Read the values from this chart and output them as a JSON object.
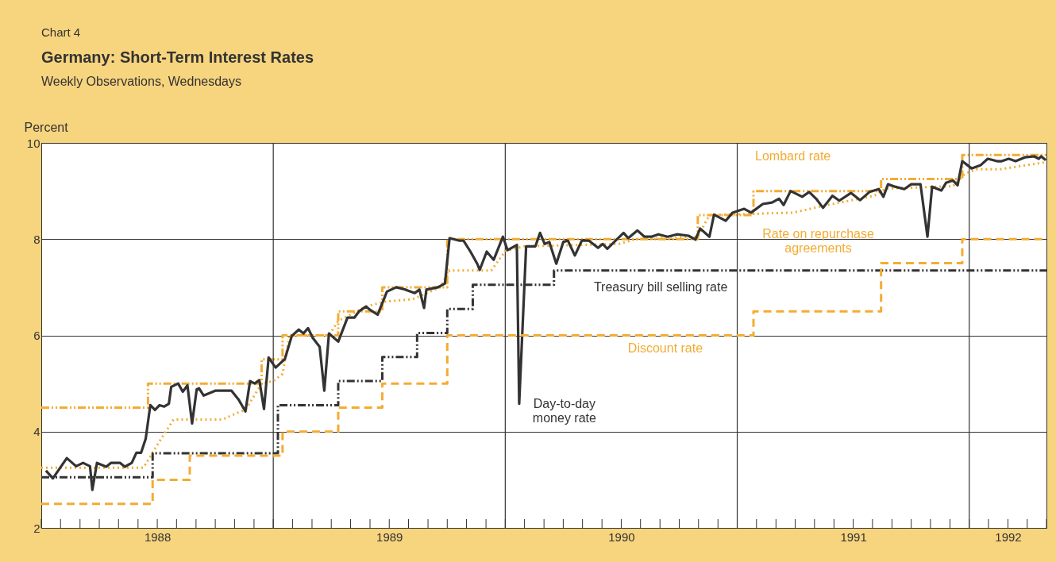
{
  "chart_data": {
    "type": "line",
    "title": "Germany:  Short-Term Interest Rates",
    "subtitle": "Weekly Observations, Wednesdays",
    "ylabel": "Percent",
    "xlim": [
      1988,
      1992.333
    ],
    "ylim": [
      2,
      10
    ],
    "yticks": [
      2,
      4,
      6,
      8,
      10
    ],
    "xticks": [
      {
        "value": 1988,
        "label": null
      },
      {
        "value": 1988.083,
        "label": null
      },
      {
        "value": 1988.167,
        "label": null
      },
      {
        "value": 1988.25,
        "label": null
      },
      {
        "value": 1988.333,
        "label": null
      },
      {
        "value": 1988.417,
        "label": null
      },
      {
        "value": 1988.5,
        "label": "1988"
      },
      {
        "value": 1988.583,
        "label": null
      },
      {
        "value": 1988.667,
        "label": null
      },
      {
        "value": 1988.75,
        "label": null
      },
      {
        "value": 1988.833,
        "label": null
      },
      {
        "value": 1988.917,
        "label": null
      },
      {
        "value": 1989,
        "label": null
      },
      {
        "value": 1989.083,
        "label": null
      },
      {
        "value": 1989.167,
        "label": null
      },
      {
        "value": 1989.25,
        "label": null
      },
      {
        "value": 1989.333,
        "label": null
      },
      {
        "value": 1989.417,
        "label": null
      },
      {
        "value": 1989.5,
        "label": "1989"
      },
      {
        "value": 1989.583,
        "label": null
      },
      {
        "value": 1989.667,
        "label": null
      },
      {
        "value": 1989.75,
        "label": null
      },
      {
        "value": 1989.833,
        "label": null
      },
      {
        "value": 1989.917,
        "label": null
      },
      {
        "value": 1990,
        "label": null
      },
      {
        "value": 1990.083,
        "label": null
      },
      {
        "value": 1990.167,
        "label": null
      },
      {
        "value": 1990.25,
        "label": null
      },
      {
        "value": 1990.333,
        "label": null
      },
      {
        "value": 1990.417,
        "label": null
      },
      {
        "value": 1990.5,
        "label": "1990"
      },
      {
        "value": 1990.583,
        "label": null
      },
      {
        "value": 1990.667,
        "label": null
      },
      {
        "value": 1990.75,
        "label": null
      },
      {
        "value": 1990.833,
        "label": null
      },
      {
        "value": 1990.917,
        "label": null
      },
      {
        "value": 1991,
        "label": null
      },
      {
        "value": 1991.083,
        "label": null
      },
      {
        "value": 1991.167,
        "label": null
      },
      {
        "value": 1991.25,
        "label": null
      },
      {
        "value": 1991.333,
        "label": null
      },
      {
        "value": 1991.417,
        "label": null
      },
      {
        "value": 1991.5,
        "label": "1991"
      },
      {
        "value": 1991.583,
        "label": null
      },
      {
        "value": 1991.667,
        "label": null
      },
      {
        "value": 1991.75,
        "label": null
      },
      {
        "value": 1991.833,
        "label": null
      },
      {
        "value": 1991.917,
        "label": null
      },
      {
        "value": 1992,
        "label": null
      },
      {
        "value": 1992.083,
        "label": null
      },
      {
        "value": 1992.167,
        "label": "1992"
      },
      {
        "value": 1992.25,
        "label": null
      },
      {
        "value": 1992.333,
        "label": null
      }
    ],
    "grid": "y",
    "ref_lines": [
      {
        "axis": "x",
        "value": 1989,
        "label": null,
        "color": "#333333"
      },
      {
        "axis": "x",
        "value": 1990,
        "label": null,
        "color": "#333333"
      },
      {
        "axis": "x",
        "value": 1991,
        "label": null,
        "color": "#333333"
      },
      {
        "axis": "x",
        "value": 1992,
        "label": null,
        "color": "#333333"
      }
    ],
    "series": [
      {
        "type": "step",
        "line_style": "dashdot",
        "color": "#f3ac32",
        "x": [
          1988,
          1988.46,
          1988.95,
          1989.04,
          1989.28,
          1989.47,
          1989.75,
          1990.83,
          1991.07,
          1991.62,
          1991.97,
          1992.333
        ],
        "values": [
          4.5,
          5.0,
          5.5,
          6.0,
          6.5,
          7.0,
          8.0,
          8.5,
          9.0,
          9.25,
          9.75,
          9.75
        ]
      },
      {
        "type": "line",
        "line_style": "dotted",
        "color": "#f3ac32",
        "x": [
          1988,
          1988.44,
          1988.51,
          1988.57,
          1988.78,
          1988.85,
          1988.88,
          1988.95,
          1989.0,
          1989.04,
          1989.07,
          1989.24,
          1989.28,
          1989.4,
          1989.48,
          1989.6,
          1989.72,
          1989.76,
          1989.94,
          1990.0,
          1990.08,
          1990.49,
          1990.56,
          1990.83,
          1990.88,
          1991.24,
          1991.38,
          1991.59,
          1991.64,
          1991.93,
          1991.98,
          1992.03,
          1992.13,
          1992.333
        ],
        "values": [
          3.25,
          3.25,
          3.8,
          4.25,
          4.25,
          4.4,
          4.45,
          5.0,
          5.05,
          5.2,
          6.0,
          6.0,
          6.3,
          6.6,
          6.7,
          6.75,
          7.0,
          7.35,
          7.35,
          7.75,
          7.85,
          7.9,
          8.0,
          8.05,
          8.5,
          8.55,
          8.7,
          8.9,
          9.05,
          9.1,
          9.35,
          9.45,
          9.45,
          9.6
        ]
      },
      {
        "type": "line",
        "line_style": "solid",
        "color": "#333333",
        "x": [
          1988.02,
          1988.05,
          1988.11,
          1988.15,
          1988.18,
          1988.21,
          1988.22,
          1988.24,
          1988.28,
          1988.3,
          1988.34,
          1988.36,
          1988.39,
          1988.41,
          1988.43,
          1988.45,
          1988.47,
          1988.49,
          1988.51,
          1988.53,
          1988.55,
          1988.56,
          1988.59,
          1988.61,
          1988.63,
          1988.65,
          1988.67,
          1988.68,
          1988.7,
          1988.75,
          1988.82,
          1988.85,
          1988.88,
          1988.9,
          1988.92,
          1988.94,
          1988.96,
          1988.98,
          1989.01,
          1989.05,
          1989.08,
          1989.11,
          1989.13,
          1989.15,
          1989.17,
          1989.2,
          1989.22,
          1989.24,
          1989.28,
          1989.32,
          1989.35,
          1989.37,
          1989.4,
          1989.42,
          1989.45,
          1989.49,
          1989.53,
          1989.57,
          1989.61,
          1989.63,
          1989.65,
          1989.66,
          1989.71,
          1989.74,
          1989.76,
          1989.8,
          1989.82,
          1989.85,
          1989.88,
          1989.89,
          1989.92,
          1989.95,
          1989.99,
          1990.01,
          1990.05,
          1990.06,
          1990.09,
          1990.13,
          1990.15,
          1990.17,
          1990.19,
          1990.22,
          1990.25,
          1990.27,
          1990.3,
          1990.33,
          1990.36,
          1990.4,
          1990.42,
          1990.44,
          1990.48,
          1990.51,
          1990.53,
          1990.57,
          1990.6,
          1990.63,
          1990.66,
          1990.7,
          1990.74,
          1990.79,
          1990.82,
          1990.84,
          1990.88,
          1990.9,
          1990.95,
          1990.98,
          1991.03,
          1991.06,
          1991.11,
          1991.15,
          1991.18,
          1991.2,
          1991.23,
          1991.28,
          1991.31,
          1991.34,
          1991.37,
          1991.41,
          1991.44,
          1991.49,
          1991.53,
          1991.57,
          1991.61,
          1991.63,
          1991.65,
          1991.68,
          1991.72,
          1991.75,
          1991.79,
          1991.82,
          1991.84,
          1991.88,
          1991.9,
          1991.93,
          1991.95,
          1991.97,
          1992.01,
          1992.05,
          1992.08,
          1992.12,
          1992.14,
          1992.17,
          1992.2,
          1992.24,
          1992.28,
          1992.3,
          1992.31,
          1992.33
        ],
        "values": [
          3.19,
          3.03,
          3.45,
          3.28,
          3.35,
          3.28,
          2.79,
          3.35,
          3.27,
          3.35,
          3.35,
          3.27,
          3.35,
          3.56,
          3.56,
          3.85,
          4.55,
          4.45,
          4.55,
          4.52,
          4.58,
          4.93,
          5.0,
          4.83,
          4.96,
          4.17,
          4.88,
          4.9,
          4.75,
          4.85,
          4.85,
          4.67,
          4.42,
          5.05,
          5.0,
          5.07,
          4.47,
          5.54,
          5.33,
          5.51,
          5.99,
          6.12,
          6.04,
          6.15,
          5.95,
          5.76,
          4.85,
          6.04,
          5.87,
          6.37,
          6.37,
          6.5,
          6.6,
          6.52,
          6.43,
          6.91,
          7.0,
          6.95,
          6.88,
          6.95,
          6.57,
          6.95,
          7.0,
          7.08,
          8.02,
          7.97,
          7.97,
          7.74,
          7.48,
          7.36,
          7.74,
          7.57,
          8.05,
          7.77,
          7.88,
          4.58,
          7.85,
          7.85,
          8.13,
          7.9,
          7.94,
          7.49,
          7.94,
          7.97,
          7.66,
          7.97,
          7.97,
          7.82,
          7.9,
          7.8,
          7.99,
          8.13,
          8.02,
          8.18,
          8.05,
          8.05,
          8.1,
          8.05,
          8.1,
          8.07,
          7.99,
          8.22,
          8.05,
          8.51,
          8.38,
          8.55,
          8.63,
          8.55,
          8.73,
          8.76,
          8.84,
          8.71,
          9.0,
          8.88,
          8.98,
          8.84,
          8.65,
          8.9,
          8.8,
          8.96,
          8.81,
          8.98,
          9.04,
          8.88,
          9.14,
          9.09,
          9.04,
          9.14,
          9.14,
          8.05,
          9.09,
          9.01,
          9.17,
          9.22,
          9.12,
          9.62,
          9.47,
          9.54,
          9.67,
          9.62,
          9.62,
          9.67,
          9.62,
          9.7,
          9.72,
          9.67,
          9.72,
          9.64
        ]
      },
      {
        "type": "step",
        "line_style": "dashdot",
        "color": "#333333",
        "x": [
          1988,
          1988.48,
          1989.02,
          1989.28,
          1989.47,
          1989.62,
          1989.75,
          1989.86,
          1990.21,
          1992.333
        ],
        "values": [
          3.05,
          3.55,
          4.55,
          5.05,
          5.55,
          6.05,
          6.55,
          7.05,
          7.35,
          7.35
        ]
      },
      {
        "type": "step",
        "line_style": "dashed",
        "color": "#f3ac32",
        "x": [
          1988,
          1988.48,
          1988.64,
          1989.04,
          1989.28,
          1989.47,
          1989.75,
          1991.07,
          1991.62,
          1991.97,
          1992.333
        ],
        "values": [
          2.5,
          3.0,
          3.5,
          4.0,
          4.5,
          5.0,
          6.0,
          6.5,
          7.5,
          8.0,
          8.0
        ]
      }
    ],
    "annotations": [
      {
        "text": "Lombard rate",
        "x": 1991.24,
        "y": 9.0
      },
      {
        "text": "Rate on repurchase\nagreements",
        "x": 1991.38,
        "y": 8.7
      },
      {
        "text": "Day-to-day\nmoney rate",
        "x": 1990.06,
        "y": 4.58
      },
      {
        "text": "Treasury bill selling rate",
        "x": 1990.67,
        "y": 7.35
      },
      {
        "text": "Discount rate",
        "x": 1990.69,
        "y": 6.0
      },
      "Chart 4"
    ]
  }
}
